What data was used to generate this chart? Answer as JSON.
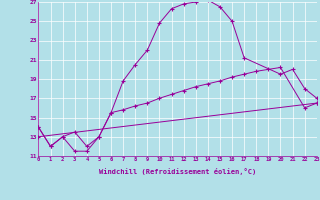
{
  "xlabel": "Windchill (Refroidissement éolien,°C)",
  "bg_color": "#b2e0e8",
  "grid_color": "#ffffff",
  "line_color": "#990099",
  "xmin": 0,
  "xmax": 23,
  "ymin": 11,
  "ymax": 27,
  "yticks": [
    11,
    13,
    15,
    17,
    19,
    21,
    23,
    25,
    27
  ],
  "xticks": [
    0,
    1,
    2,
    3,
    4,
    5,
    6,
    7,
    8,
    9,
    10,
    11,
    12,
    13,
    14,
    15,
    16,
    17,
    18,
    19,
    20,
    21,
    22,
    23
  ],
  "line1_x": [
    0,
    1,
    2,
    3,
    4,
    5,
    6,
    7,
    8,
    9,
    10,
    11,
    12,
    13,
    14,
    15,
    16,
    17,
    20,
    21,
    22,
    23
  ],
  "line1_y": [
    14.0,
    12.0,
    13.0,
    11.5,
    11.5,
    13.0,
    15.5,
    18.8,
    20.5,
    22.0,
    24.8,
    26.3,
    26.8,
    27.0,
    27.2,
    26.5,
    25.0,
    21.2,
    19.5,
    20.0,
    18.0,
    17.0
  ],
  "line2_x": [
    0,
    1,
    2,
    3,
    4,
    5,
    6,
    7,
    8,
    9,
    10,
    11,
    12,
    13,
    14,
    15,
    16,
    17,
    18,
    19,
    20,
    22,
    23
  ],
  "line2_y": [
    14.0,
    12.0,
    13.0,
    13.5,
    12.0,
    13.0,
    15.5,
    15.8,
    16.2,
    16.5,
    17.0,
    17.4,
    17.8,
    18.2,
    18.5,
    18.8,
    19.2,
    19.5,
    19.8,
    20.0,
    20.2,
    16.0,
    16.5
  ],
  "line3_x": [
    0,
    23
  ],
  "line3_y": [
    13.0,
    16.5
  ]
}
